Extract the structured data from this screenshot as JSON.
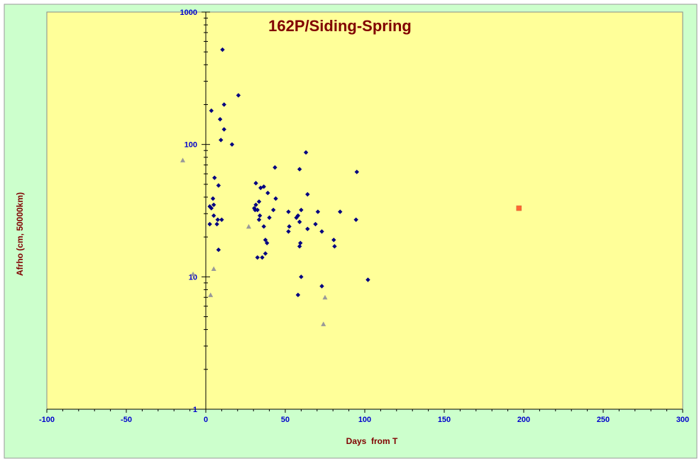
{
  "chart_data": {
    "type": "scatter",
    "title": "162P/Siding-Spring",
    "xlabel": "Days  from T",
    "ylabel": "Afrho (cm, 50000km)",
    "xlim": [
      -100,
      300
    ],
    "ylim": [
      1,
      1000
    ],
    "y_scale": "log",
    "x_ticks": [
      -100,
      -50,
      0,
      50,
      100,
      150,
      200,
      250,
      300
    ],
    "x_tick_labels": [
      "-100",
      "-50",
      "0",
      "50",
      "100",
      "150",
      "200",
      "250",
      "300"
    ],
    "y_ticks": [
      1,
      10,
      100,
      1000
    ],
    "y_tick_labels": [
      "1",
      "10",
      "100",
      "1000"
    ],
    "grid": false,
    "legend": "none",
    "colors": {
      "page_background": "#ccffcc",
      "plot_background": "#ffff99",
      "title": "#800000",
      "axis_label": "#800000",
      "tick_label": "#0000cc",
      "axis": "#000000"
    },
    "series": [
      {
        "marker": "diamond",
        "color": "#000080",
        "points": [
          [
            10.5,
            520
          ],
          [
            20.5,
            235
          ],
          [
            11.5,
            200
          ],
          [
            3.5,
            180
          ],
          [
            9.0,
            155
          ],
          [
            11.5,
            130
          ],
          [
            9.5,
            108
          ],
          [
            16.5,
            100
          ],
          [
            63.0,
            87
          ],
          [
            43.5,
            67
          ],
          [
            59.0,
            65
          ],
          [
            95.0,
            62
          ],
          [
            5.5,
            56
          ],
          [
            31.5,
            51
          ],
          [
            8.0,
            49
          ],
          [
            36.5,
            48
          ],
          [
            34.5,
            47
          ],
          [
            64.0,
            42
          ],
          [
            39.0,
            43
          ],
          [
            4.5,
            39
          ],
          [
            44.0,
            39
          ],
          [
            33.5,
            37
          ],
          [
            2.5,
            34
          ],
          [
            3.5,
            33
          ],
          [
            5.0,
            35
          ],
          [
            31.5,
            35
          ],
          [
            30.5,
            33
          ],
          [
            31.0,
            32
          ],
          [
            32.5,
            32
          ],
          [
            42.5,
            32
          ],
          [
            60.0,
            32
          ],
          [
            52.0,
            31
          ],
          [
            70.5,
            31
          ],
          [
            84.5,
            31
          ],
          [
            5.0,
            29
          ],
          [
            34.0,
            29
          ],
          [
            58.0,
            29
          ],
          [
            7.5,
            27
          ],
          [
            10.0,
            27
          ],
          [
            33.5,
            27
          ],
          [
            40.0,
            28
          ],
          [
            57.0,
            28
          ],
          [
            59.0,
            26
          ],
          [
            94.5,
            27
          ],
          [
            2.5,
            25
          ],
          [
            7.0,
            25
          ],
          [
            36.5,
            24
          ],
          [
            52.5,
            24
          ],
          [
            69.0,
            25
          ],
          [
            64.0,
            23
          ],
          [
            73.0,
            22
          ],
          [
            52.0,
            22
          ],
          [
            80.5,
            19
          ],
          [
            37.5,
            19
          ],
          [
            38.5,
            18
          ],
          [
            59.5,
            18
          ],
          [
            59.0,
            17
          ],
          [
            81.0,
            17
          ],
          [
            8.0,
            16
          ],
          [
            32.5,
            14
          ],
          [
            35.5,
            14
          ],
          [
            37.5,
            15
          ],
          [
            60.0,
            10
          ],
          [
            102.0,
            9.5
          ],
          [
            73.0,
            8.5
          ],
          [
            58.0,
            7.3
          ]
        ]
      },
      {
        "marker": "triangle",
        "color": "#999999",
        "points": [
          [
            -14.5,
            76
          ],
          [
            27.0,
            24
          ],
          [
            5.0,
            11.5
          ],
          [
            -8.0,
            10.5
          ],
          [
            3.0,
            7.3
          ],
          [
            75.0,
            7.0
          ],
          [
            74.0,
            4.4
          ]
        ]
      },
      {
        "marker": "square",
        "color": "#ff6633",
        "points": [
          [
            197.0,
            33
          ]
        ]
      }
    ]
  }
}
